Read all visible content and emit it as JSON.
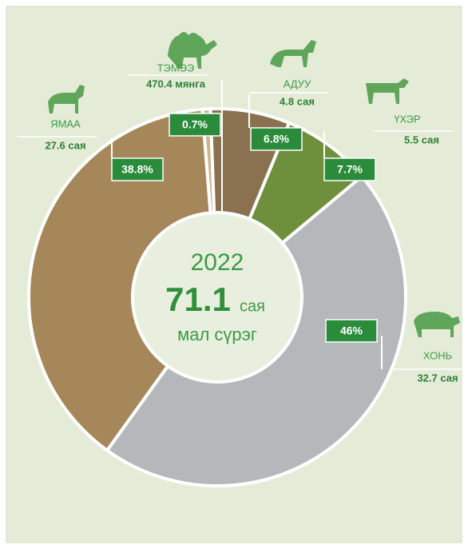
{
  "chart_data": {
    "type": "donut",
    "year": 2022,
    "total": 71.1,
    "unit": "сая",
    "subtitle": "мал сүрэг",
    "categories": [
      "ТЭМЭЭ",
      "АДУУ",
      "ҮХЭР",
      "ХОНЬ",
      "ЯМАА"
    ],
    "values": [
      0.7,
      6.8,
      7.7,
      46,
      38.8
    ],
    "value_labels": [
      "0.7%",
      "6.8%",
      "7.7%",
      "46%",
      "38.8%"
    ],
    "counts": [
      "470.4 мянга",
      "4.8 сая",
      "5.5 сая",
      "32.7 сая",
      "27.6 сая"
    ],
    "colors": [
      "#c9b48f",
      "#8a7250",
      "#6e8f3c",
      "#b4b8ba",
      "#a5875a"
    ]
  }
}
